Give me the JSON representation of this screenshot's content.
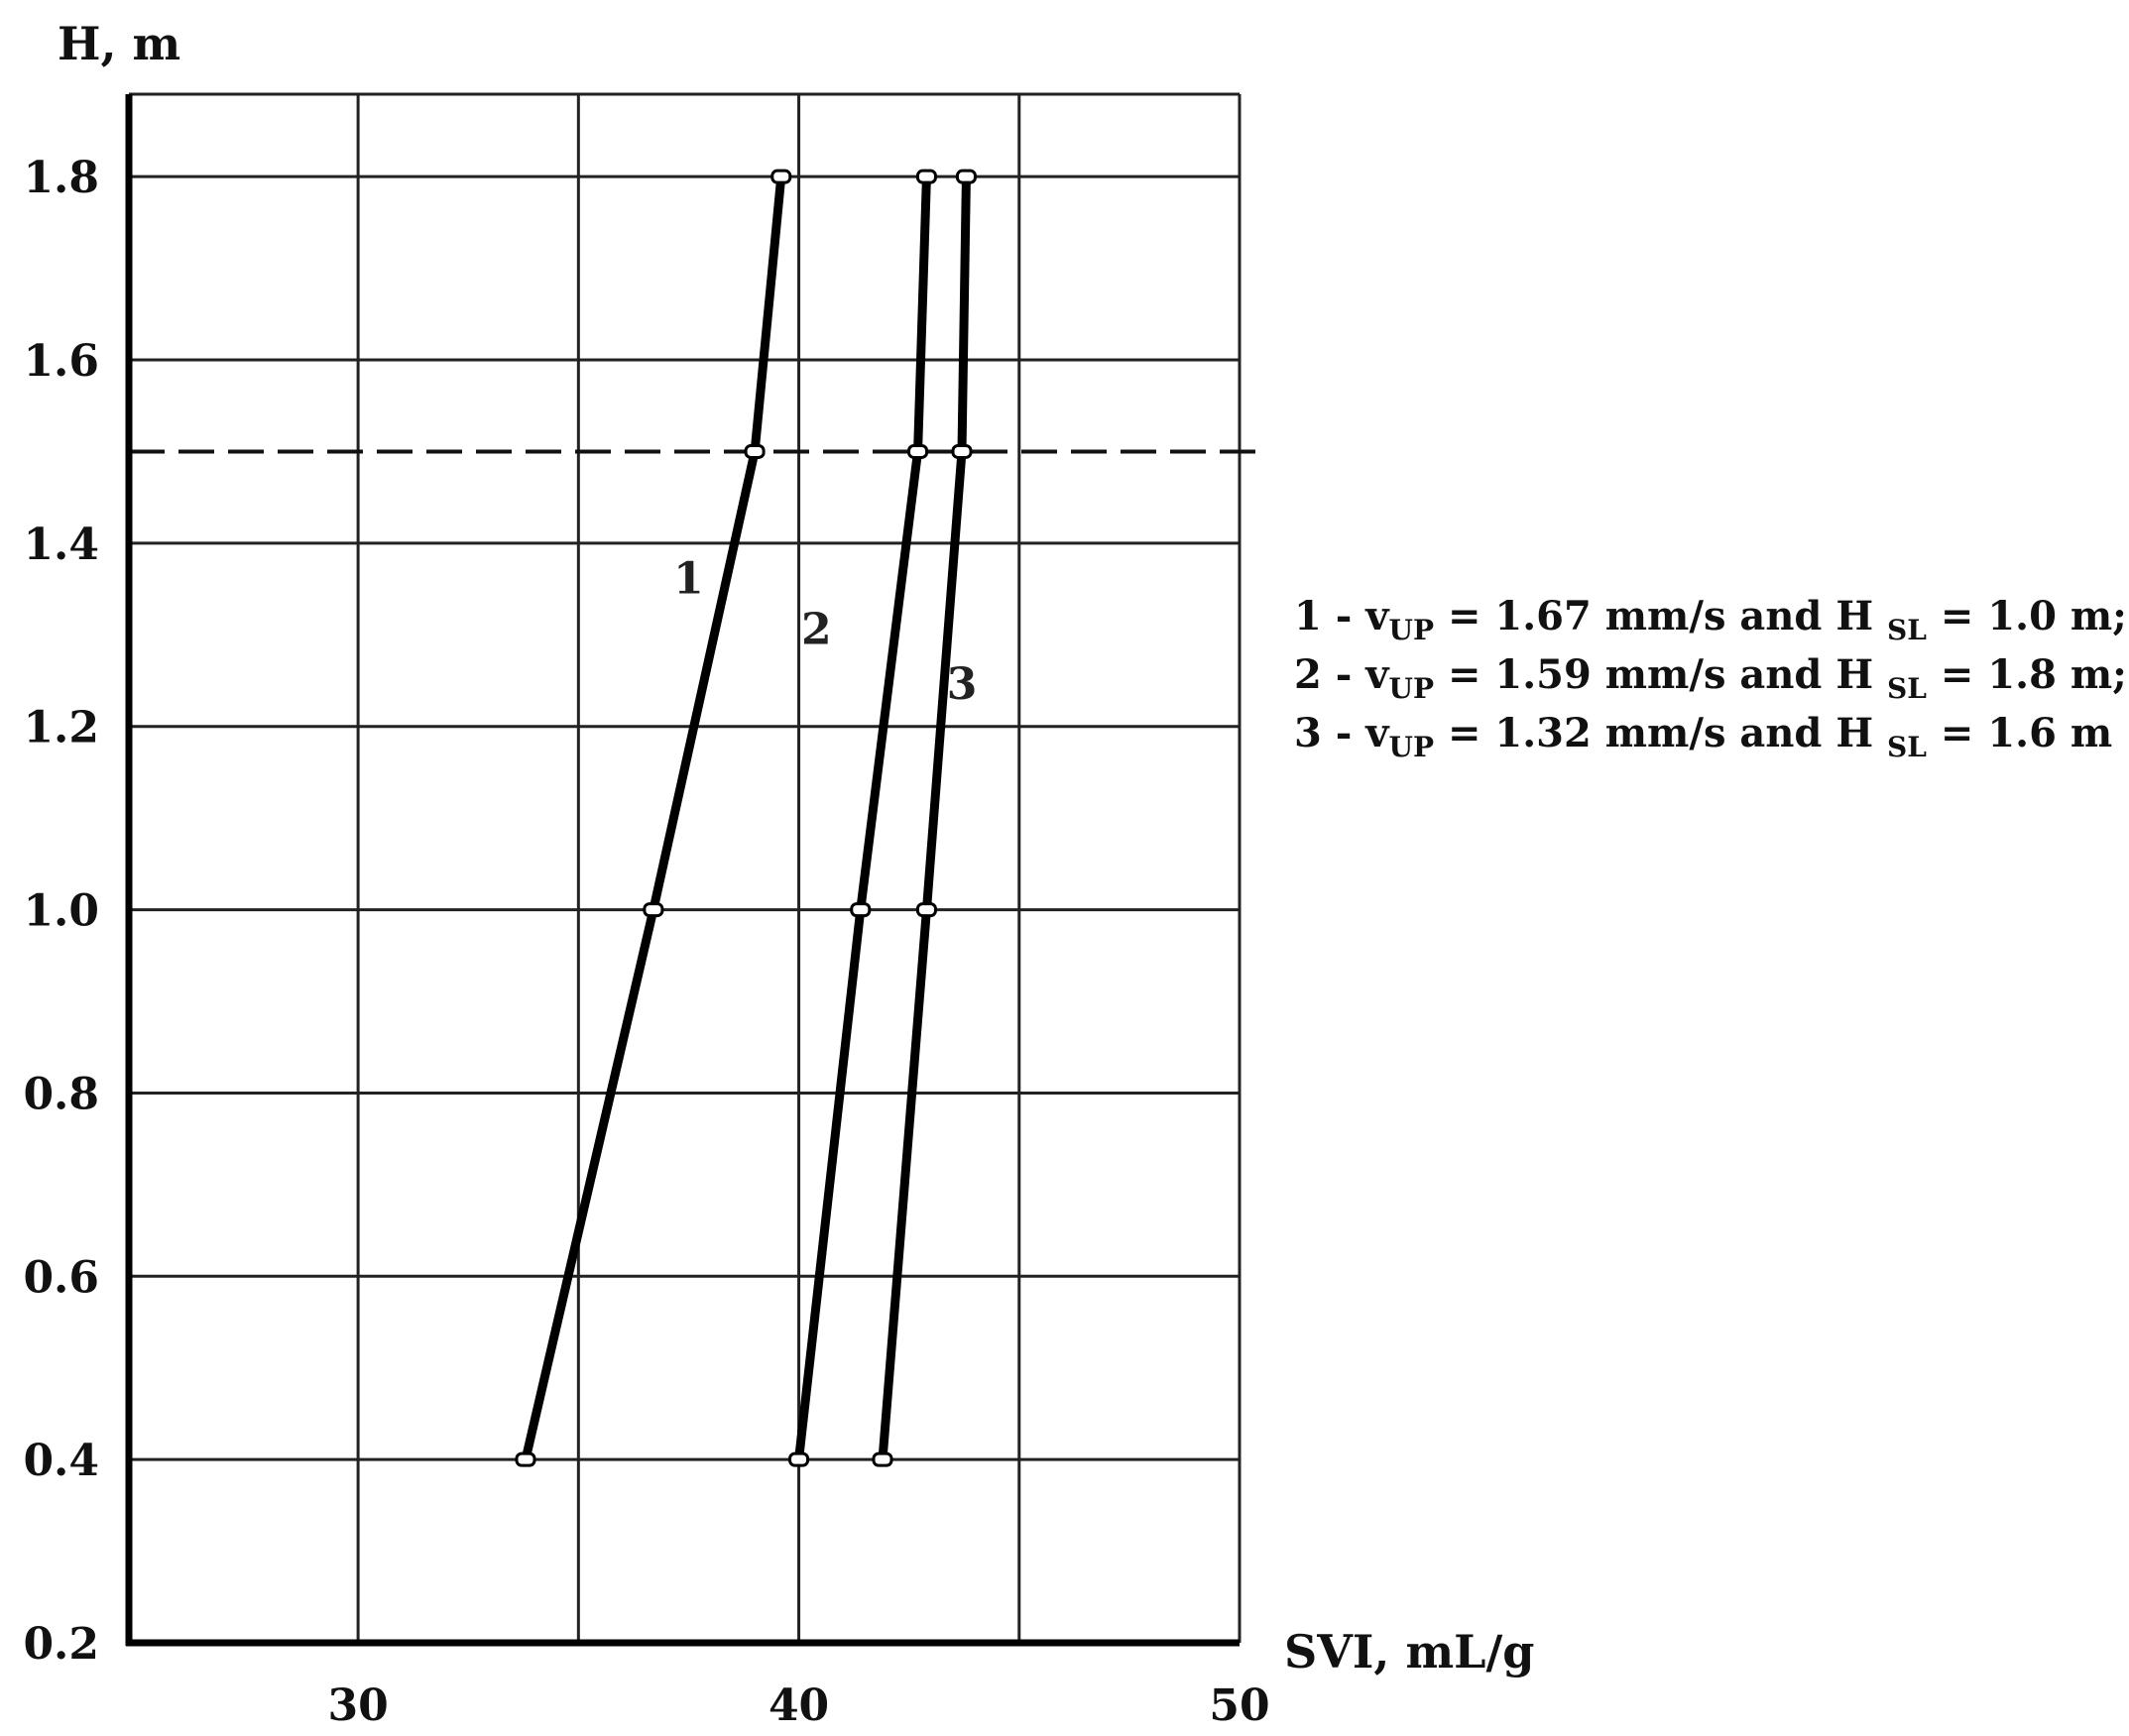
{
  "chart_data": {
    "type": "line",
    "ylabel": "H, m",
    "xlabel": "SVI, mL/g",
    "xlim": [
      24.8,
      50
    ],
    "ylim": [
      0.2,
      1.89
    ],
    "x_ticks": [
      "30",
      "40",
      "50"
    ],
    "x_tick_values": [
      30,
      40,
      50
    ],
    "y_ticks": [
      "0.2",
      "0.4",
      "0.6",
      "0.8",
      "1.0",
      "1.2",
      "1.4",
      "1.6",
      "1.8"
    ],
    "y_tick_values": [
      0.2,
      0.4,
      0.6,
      0.8,
      1.0,
      1.2,
      1.4,
      1.6,
      1.8
    ],
    "x_gridlines": [
      30,
      35,
      40,
      45,
      50
    ],
    "grid": true,
    "reference_line": {
      "y": 1.5,
      "style": "dashed"
    },
    "series": [
      {
        "label": "1",
        "x": [
          33.8,
          36.7,
          39.0,
          39.6
        ],
        "y": [
          0.4,
          1.0,
          1.5,
          1.8
        ]
      },
      {
        "label": "2",
        "x": [
          40.0,
          41.4,
          42.7,
          42.9
        ],
        "y": [
          0.4,
          1.0,
          1.5,
          1.8
        ]
      },
      {
        "label": "3",
        "x": [
          41.9,
          42.9,
          43.7,
          43.8
        ],
        "y": [
          0.4,
          1.0,
          1.5,
          1.8
        ]
      }
    ],
    "legend": {
      "placement": "right",
      "entries": [
        {
          "prefix": "1 - v",
          "sub1": "UP",
          "mid": "= 1.67 mm/s and H",
          "sub2": "SL",
          "suffix": "= 1.0 m;"
        },
        {
          "prefix": "2 - v",
          "sub1": "UP",
          "mid": "= 1.59 mm/s and H",
          "sub2": "SL",
          "suffix": "= 1.8 m;"
        },
        {
          "prefix": "3 - v",
          "sub1": "UP",
          "mid": "= 1.32 mm/s and H",
          "sub2": "SL",
          "suffix": "= 1.6 m"
        }
      ]
    }
  }
}
